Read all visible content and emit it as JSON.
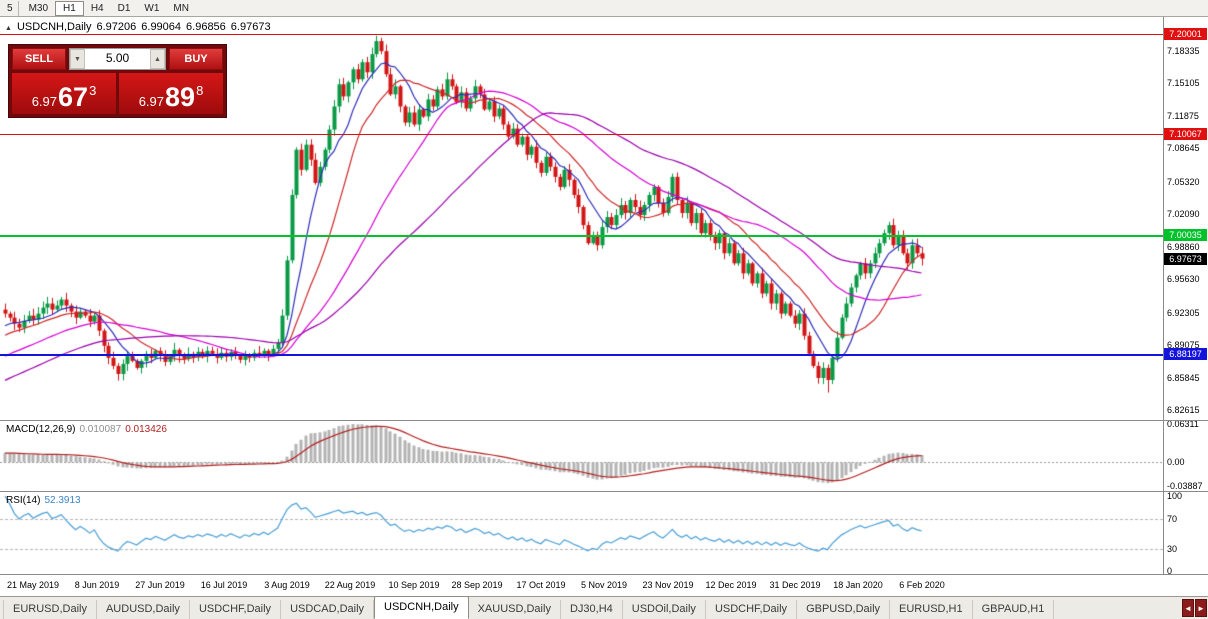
{
  "toolbar": {
    "timeframes": [
      {
        "label": "5",
        "active": false
      },
      {
        "label": "M30",
        "active": false
      },
      {
        "label": "H1",
        "active": true
      },
      {
        "label": "H4",
        "active": false
      },
      {
        "label": "D1",
        "active": false
      },
      {
        "label": "W1",
        "active": false
      },
      {
        "label": "MN",
        "active": false
      }
    ]
  },
  "chart": {
    "title": "USDCNH,Daily",
    "marker": "▲",
    "ohlc": {
      "open": "6.97206",
      "high": "6.99064",
      "low": "6.96856",
      "close": "6.97673"
    }
  },
  "trade_panel": {
    "sell_label": "SELL",
    "buy_label": "BUY",
    "volume": "5.00",
    "vol_down": "▼",
    "vol_up": "▲",
    "sell_price": {
      "small": "6.97",
      "large": "67",
      "sup": "3"
    },
    "buy_price": {
      "small": "6.97",
      "large": "89",
      "sup": "8"
    }
  },
  "price_axis": {
    "labels": [
      "7.18335",
      "7.15105",
      "7.11875",
      "7.08645",
      "7.05320",
      "7.02090",
      "6.98860",
      "6.95630",
      "6.92305",
      "6.89075",
      "6.85845",
      "6.82615"
    ]
  },
  "hlines": [
    {
      "price": 7.20001,
      "label": "7.20001",
      "color": "#e01010",
      "thickness": 1
    },
    {
      "price": 7.10067,
      "label": "7.10067",
      "color": "#e01010",
      "thickness": 1
    },
    {
      "price": 7.00035,
      "label": "7.00035",
      "color": "#00c22a",
      "thickness": 2
    },
    {
      "price": 6.88197,
      "label": "6.88197",
      "color": "#1414dd",
      "thickness": 2
    }
  ],
  "current_price": {
    "price": 6.97673,
    "label": "6.97673",
    "color": "#000000"
  },
  "indicators": {
    "macd": {
      "title": "MACD(12,26,9)",
      "value_main": "0.010087",
      "value_signal": "0.013426",
      "axis": [
        "0.06311",
        "0.00",
        "-0.03887"
      ]
    },
    "rsi": {
      "title": "RSI(14)",
      "value": "52.3913",
      "axis": [
        "100",
        "70",
        "30",
        "0"
      ]
    }
  },
  "date_axis": {
    "labels": [
      "21 May 2019",
      "8 Jun 2019",
      "27 Jun 2019",
      "16 Jul 2019",
      "3 Aug 2019",
      "22 Aug 2019",
      "10 Sep 2019",
      "28 Sep 2019",
      "17 Oct 2019",
      "5 Nov 2019",
      "23 Nov 2019",
      "12 Dec 2019",
      "31 Dec 2019",
      "18 Jan 2020",
      "6 Feb 2020"
    ]
  },
  "tabs": {
    "items": [
      {
        "label": "EURUSD,Daily",
        "active": false
      },
      {
        "label": "AUDUSD,Daily",
        "active": false
      },
      {
        "label": "USDCHF,Daily",
        "active": false
      },
      {
        "label": "USDCAD,Daily",
        "active": false
      },
      {
        "label": "USDCNH,Daily",
        "active": true
      },
      {
        "label": "XAUUSD,Daily",
        "active": false
      },
      {
        "label": "DJ30,H4",
        "active": false
      },
      {
        "label": "USDOil,Daily",
        "active": false
      },
      {
        "label": "USDCHF,Daily",
        "active": false
      },
      {
        "label": "GBPUSD,Daily",
        "active": false
      },
      {
        "label": "EURUSD,H1",
        "active": false
      },
      {
        "label": "GBPAUD,H1",
        "active": false
      }
    ],
    "scroll_left": "◄",
    "scroll_right": "►"
  },
  "chart_data": {
    "type": "candlestick",
    "symbol": "USDCNH",
    "timeframe": "Daily",
    "title": "USDCNH,Daily",
    "y_range": [
      6.8182,
      7.208
    ],
    "x_labels": [
      "21 May 2019",
      "8 Jun 2019",
      "27 Jun 2019",
      "16 Jul 2019",
      "3 Aug 2019",
      "22 Aug 2019",
      "10 Sep 2019",
      "28 Sep 2019",
      "17 Oct 2019",
      "5 Nov 2019",
      "23 Nov 2019",
      "12 Dec 2019",
      "31 Dec 2019",
      "18 Jan 2020",
      "6 Feb 2020"
    ],
    "closes": [
      6.922,
      6.918,
      6.912,
      6.908,
      6.915,
      6.92,
      6.916,
      6.922,
      6.928,
      6.932,
      6.926,
      6.93,
      6.936,
      6.93,
      6.924,
      6.918,
      6.924,
      6.92,
      6.914,
      6.92,
      6.905,
      6.89,
      6.878,
      6.87,
      6.862,
      6.872,
      6.88,
      6.875,
      6.868,
      6.875,
      6.882,
      6.878,
      6.885,
      6.88,
      6.874,
      6.88,
      6.886,
      6.88,
      6.877,
      6.882,
      6.879,
      6.884,
      6.88,
      6.885,
      6.882,
      6.878,
      6.883,
      6.879,
      6.884,
      6.88,
      6.876,
      6.881,
      6.878,
      6.883,
      6.88,
      6.885,
      6.881,
      6.887,
      6.893,
      6.92,
      6.975,
      7.04,
      7.085,
      7.065,
      7.09,
      7.075,
      7.052,
      7.068,
      7.085,
      7.105,
      7.128,
      7.15,
      7.138,
      7.152,
      7.165,
      7.155,
      7.172,
      7.162,
      7.18,
      7.193,
      7.183,
      7.16,
      7.14,
      7.148,
      7.128,
      7.112,
      7.122,
      7.11,
      7.125,
      7.118,
      7.135,
      7.128,
      7.145,
      7.138,
      7.155,
      7.148,
      7.132,
      7.142,
      7.126,
      7.136,
      7.148,
      7.14,
      7.125,
      7.133,
      7.118,
      7.126,
      7.11,
      7.098,
      7.106,
      7.09,
      7.098,
      7.08,
      7.088,
      7.072,
      7.062,
      7.078,
      7.068,
      7.058,
      7.048,
      7.065,
      7.055,
      7.04,
      7.028,
      7.01,
      6.992,
      7.0,
      6.99,
      7.008,
      7.018,
      7.01,
      7.02,
      7.03,
      7.022,
      7.035,
      7.028,
      7.02,
      7.03,
      7.04,
      7.048,
      7.032,
      7.022,
      7.038,
      7.058,
      7.035,
      7.022,
      7.032,
      7.012,
      7.022,
      7.002,
      7.012,
      7.0,
      6.992,
      7.002,
      6.982,
      6.992,
      6.972,
      6.982,
      6.962,
      6.972,
      6.952,
      6.962,
      6.942,
      6.952,
      6.932,
      6.942,
      6.922,
      6.932,
      6.92,
      6.912,
      6.922,
      6.9,
      6.882,
      6.87,
      6.858,
      6.868,
      6.856,
      6.878,
      6.898,
      6.918,
      6.932,
      6.948,
      6.96,
      6.972,
      6.962,
      6.972,
      6.982,
      6.992,
      7.002,
      7.01,
      6.99,
      7.0,
      6.982,
      6.972,
      6.99,
      6.982,
      6.9767
    ],
    "extremes": {
      "high_index": 79,
      "high_price": 7.1985,
      "low_index": 175,
      "low_price": 6.8435
    },
    "overlays": {
      "hlines": [
        7.20001,
        7.10067,
        7.00035,
        6.88197
      ],
      "current_price": 6.97673
    },
    "moving_averages": [
      {
        "period": 8,
        "color": "#2d2dbb"
      },
      {
        "period": 16,
        "color": "#cc2929"
      },
      {
        "period": 34,
        "color": "#d400d4"
      },
      {
        "period": 55,
        "color": "#9900aa"
      }
    ],
    "macd": {
      "fast": 12,
      "slow": 26,
      "signal": 9,
      "current_main": 0.010087,
      "current_signal": 0.013426,
      "axis_max": 0.06311,
      "axis_min": -0.03887
    },
    "rsi": {
      "period": 14,
      "current": 52.3913,
      "levels": [
        70,
        30
      ],
      "range": [
        0,
        100
      ]
    },
    "style": {
      "up_color": "#0a9a46",
      "down_color": "#d21616",
      "histogram_color": "#b4b4b4",
      "signal_color": "#b22222",
      "rsi_color": "#4a9fd8",
      "background": "#ffffff"
    }
  }
}
